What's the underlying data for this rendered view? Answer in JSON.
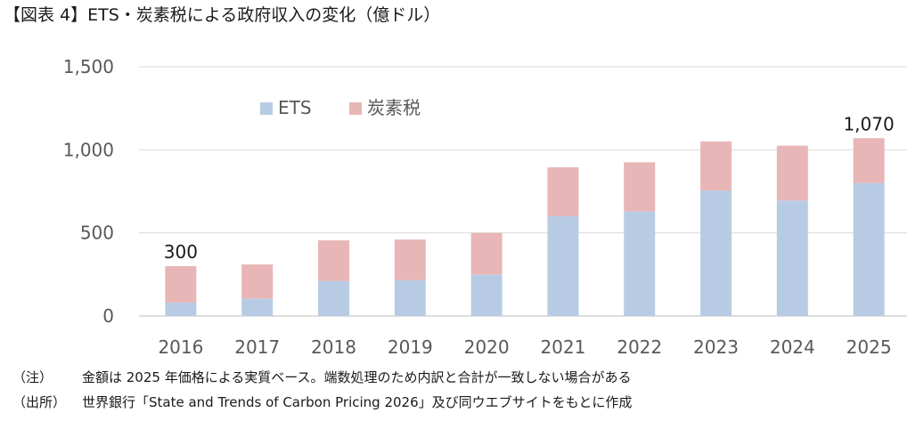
{
  "title": "【図表 4】ETS・炭素税による政府収入の変化（億ドル）",
  "chart_data": {
    "type": "bar",
    "stacked": true,
    "title": "【図表 4】ETS・炭素税による政府収入の変化（億ドル）",
    "categories": [
      "2016",
      "2017",
      "2018",
      "2019",
      "2020",
      "2021",
      "2022",
      "2023",
      "2024",
      "2025"
    ],
    "series": [
      {
        "name": "ETS",
        "color": "#b7cce4",
        "values": [
          80,
          105,
          210,
          215,
          250,
          600,
          630,
          755,
          695,
          800
        ]
      },
      {
        "name": "炭素税",
        "color": "#e8b6b6",
        "values": [
          220,
          205,
          245,
          245,
          250,
          295,
          295,
          295,
          330,
          270
        ]
      }
    ],
    "ylim": [
      0,
      1500
    ],
    "yticks": [
      0,
      500,
      1000,
      1500
    ],
    "ytick_labels": [
      "0",
      "500",
      "1,000",
      "1,500"
    ],
    "grid": true,
    "legend_position": "top-left",
    "annotations": [
      {
        "category": "2016",
        "text": "300"
      },
      {
        "category": "2025",
        "text": "1,070"
      }
    ]
  },
  "notes": {
    "note1_tag": "（注）",
    "note1_text": "金額は 2025 年価格による実質ベース。端数処理のため内訳と合計が一致しない場合がある",
    "note2_tag": "（出所）",
    "note2_text": "世界銀行「State and Trends of Carbon Pricing 2026」及び同ウエブサイトをもとに作成"
  }
}
